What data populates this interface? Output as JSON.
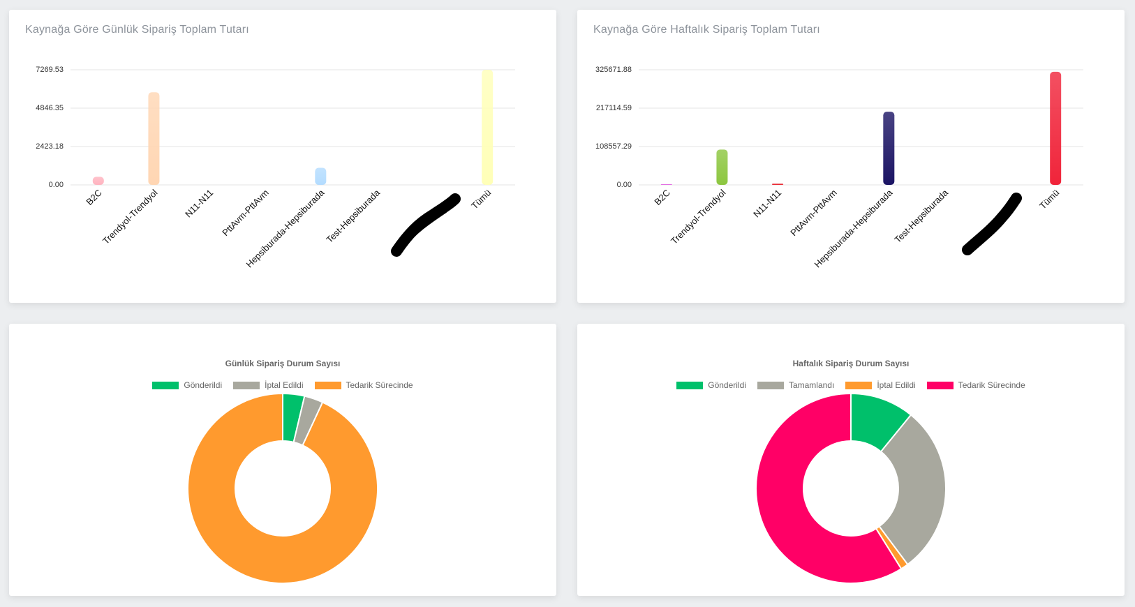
{
  "colors": {
    "gridline": "#e6e6e6",
    "tick_text": "#333333",
    "daily_bar_palette": [
      "#ffb3bf",
      "#ffd6b3",
      "#fff2b3",
      "#b3e0b3",
      "#b3dcff",
      "#e0c8ff",
      "#c8c8c8",
      "#ffffb8"
    ],
    "weekly_bar_palette": [
      "#e060e0",
      "#8cc63f",
      "#e8202a",
      "#888888",
      "#1b1464",
      "#555555",
      "#333333",
      "#f0243a"
    ]
  },
  "charts": {
    "daily_bar": {
      "title": "Kaynağa Göre Günlük Sipariş Toplam Tutarı",
      "chart_data": {
        "type": "bar",
        "title": "Kaynağa Göre Günlük Sipariş Toplam Tutarı",
        "categories": [
          "B2C",
          "Trendyol-Trendyol",
          "N11-N11",
          "PttAvm-PttAvm",
          "Hepsiburada-Hepsiburada",
          "Test-Hepsiburada",
          "",
          "Tümü"
        ],
        "values": [
          510,
          5850,
          0,
          0,
          1080,
          0,
          0,
          7269.53
        ],
        "yticks": [
          "0.00",
          "2423.18",
          "4846.35",
          "7269.53"
        ],
        "ylim": [
          0,
          7269.53
        ],
        "grid": true,
        "legend": "none"
      }
    },
    "weekly_bar": {
      "title": "Kaynağa Göre Haftalık Sipariş Toplam Tutarı",
      "chart_data": {
        "type": "bar",
        "title": "Kaynağa Göre Haftalık Sipariş Toplam Tutarı",
        "categories": [
          "B2C",
          "Trendyol-Trendyol",
          "N11-N11",
          "PttAvm-PttAvm",
          "Hepsiburada-Hepsiburada",
          "Test-Hepsiburada",
          "",
          "Tümü"
        ],
        "values": [
          2000,
          100000,
          3500,
          0,
          207000,
          0,
          0,
          320000
        ],
        "yticks": [
          "0.00",
          "108557.29",
          "217114.59",
          "325671.88"
        ],
        "ylim": [
          0,
          325671.88
        ],
        "grid": true,
        "legend": "none"
      }
    },
    "daily_pie": {
      "chart_data": {
        "type": "pie",
        "title": "Günlük Sipariş Durum Sayısı",
        "labels": [
          "Gönderildi",
          "İptal Edildi",
          "Tedarik Sürecinde"
        ],
        "values": [
          3.7,
          3.2,
          93.1
        ],
        "colors": [
          "#00c06b",
          "#a8a89e",
          "#ff9a2e"
        ],
        "legend": "top"
      }
    },
    "weekly_pie": {
      "chart_data": {
        "type": "pie",
        "title": "Haftalık Sipariş Durum Sayısı",
        "labels": [
          "Gönderildi",
          "Tamamlandı",
          "İptal Edildi",
          "Tedarik Sürecinde"
        ],
        "values": [
          10.9,
          28.9,
          1.3,
          58.9
        ],
        "colors": [
          "#00c06b",
          "#a8a89e",
          "#ff9a2e",
          "#ff0066"
        ],
        "legend": "top"
      }
    }
  }
}
